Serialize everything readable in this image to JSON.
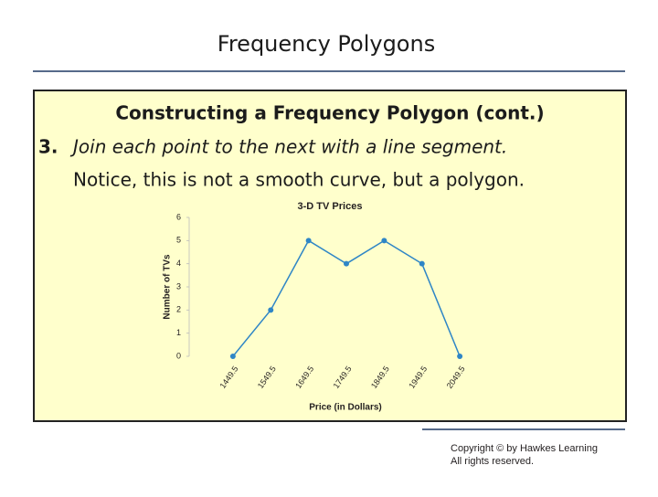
{
  "slide": {
    "title": "Frequency Polygons",
    "heading": "Constructing a Frequency Polygon (cont.)",
    "step_number": "3.",
    "step_text": "Join each point to the next with a line segment.",
    "note": "Notice, this is not a smooth curve, but a polygon.",
    "copyright": [
      "Copyright © by Hawkes Learning",
      "All rights reserved."
    ]
  },
  "chart_data": {
    "type": "line",
    "title": "3-D TV Prices",
    "x_label": "Price (in Dollars)",
    "y_label": "Number of TVs",
    "x": [
      1449.5,
      1549.5,
      1649.5,
      1749.5,
      1849.5,
      1949.5,
      2049.5
    ],
    "values": [
      0,
      2,
      5,
      4,
      5,
      4,
      0
    ],
    "color": "#2f86c6",
    "xlim": [
      1384.5,
      2114.5
    ],
    "xticks": [
      1449.5,
      1549.5,
      1649.5,
      1749.5,
      1849.5,
      1949.5,
      2049.5
    ],
    "ylim": [
      0,
      6
    ],
    "yticks": [
      0,
      1,
      2,
      3,
      4,
      5,
      6
    ]
  }
}
